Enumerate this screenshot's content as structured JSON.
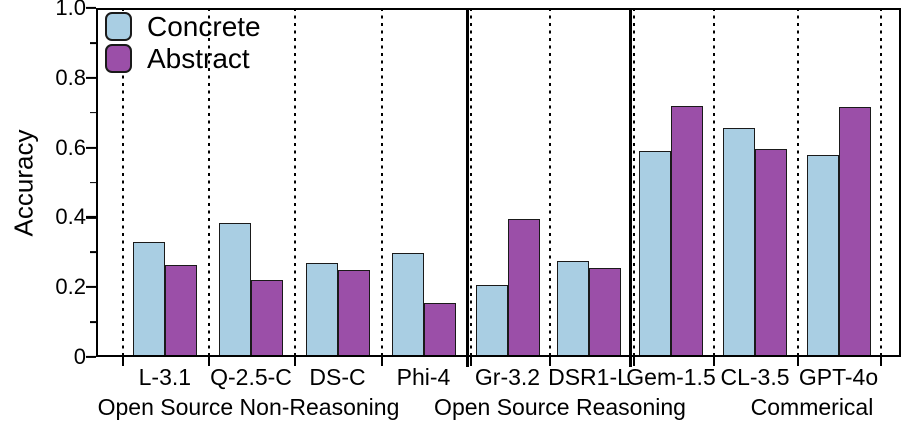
{
  "chart_data": {
    "type": "bar",
    "title": "",
    "xlabel": "",
    "ylabel": "Accuracy",
    "ylim": [
      0,
      1.0
    ],
    "ytick_labels": [
      "0",
      "0.2",
      "0.4",
      "0.6",
      "0.8",
      "1.0"
    ],
    "yticks": [
      0,
      0.2,
      0.4,
      0.6,
      0.8,
      1.0
    ],
    "yticks_minor": [
      0.1,
      0.3,
      0.5,
      0.7,
      0.9
    ],
    "grid": "vertical-dotted-between-categories",
    "legend_position": "upper-left",
    "legend": [
      {
        "name": "Concrete",
        "color": "#a9cee3"
      },
      {
        "name": "Abstract",
        "color": "#9b4fa8"
      }
    ],
    "series_keys": [
      "concrete",
      "abstract"
    ],
    "groups": [
      {
        "label": "Open Source Non-Reasoning",
        "hatch": "none",
        "models": [
          {
            "label": "L-3.1",
            "concrete": 0.33,
            "abstract": 0.265
          },
          {
            "label": "Q-2.5-C",
            "concrete": 0.385,
            "abstract": 0.22
          },
          {
            "label": "DS-C",
            "concrete": 0.27,
            "abstract": 0.248
          },
          {
            "label": "Phi-4",
            "concrete": 0.298,
            "abstract": 0.155
          }
        ]
      },
      {
        "label": "Open Source Reasoning",
        "hatch": "cross",
        "models": [
          {
            "label": "Gr-3.2",
            "concrete": 0.207,
            "abstract": 0.395
          },
          {
            "label": "DSR1-L",
            "concrete": 0.275,
            "abstract": 0.255
          }
        ]
      },
      {
        "label": "Commerical",
        "hatch": "diagonal",
        "models": [
          {
            "label": "Gem-1.5",
            "concrete": 0.59,
            "abstract": 0.72
          },
          {
            "label": "CL-3.5",
            "concrete": 0.655,
            "abstract": 0.595
          },
          {
            "label": "GPT-4o",
            "concrete": 0.58,
            "abstract": 0.715
          }
        ]
      }
    ],
    "colors": {
      "concrete": "#a9cee3",
      "abstract": "#9b4fa8",
      "axis": "#000000"
    }
  }
}
